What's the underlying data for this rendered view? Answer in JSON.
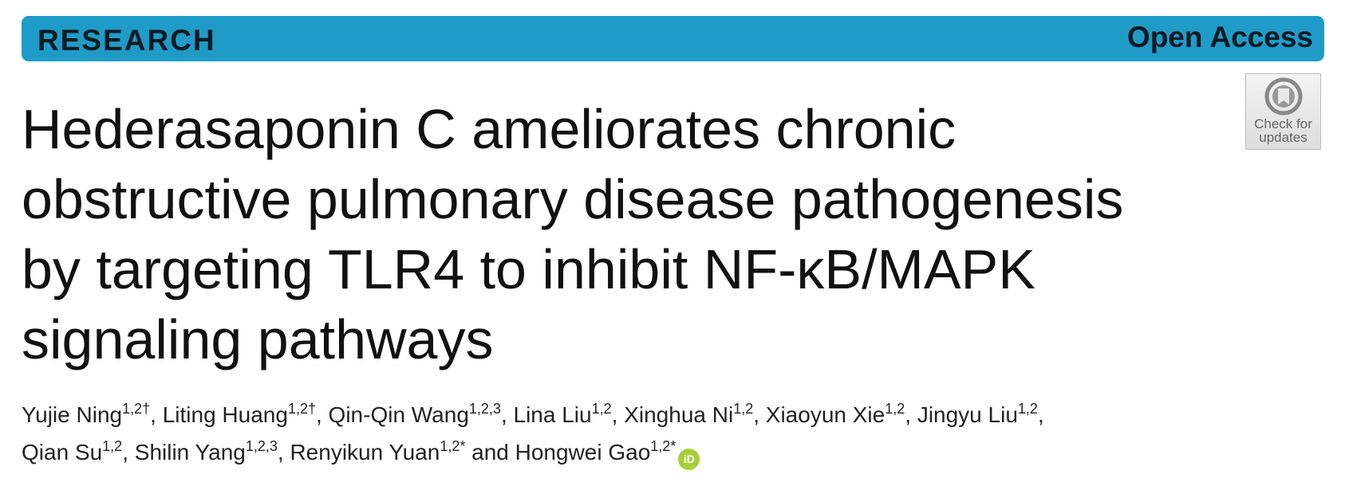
{
  "header": {
    "label": "RESEARCH",
    "access": "Open Access"
  },
  "badge": "Check for updates",
  "title_lines": [
    "Hederasaponin C ameliorates chronic",
    "obstructive pulmonary disease pathogenesis",
    "by targeting TLR4 to inhibit NF-κB/MAPK",
    "signaling pathways"
  ],
  "author_lines": [
    [
      {
        "name": "Yujie Ning",
        "sup": "1,2†",
        "after": ", "
      },
      {
        "name": "Liting Huang",
        "sup": "1,2†",
        "after": ", "
      },
      {
        "name": "Qin-Qin Wang",
        "sup": "1,2,3",
        "after": ", "
      },
      {
        "name": "Lina Liu",
        "sup": "1,2",
        "after": ", "
      },
      {
        "name": "Xinghua Ni",
        "sup": "1,2",
        "after": ", "
      },
      {
        "name": "Xiaoyun Xie",
        "sup": "1,2",
        "after": ", "
      },
      {
        "name": "Jingyu Liu",
        "sup": "1,2",
        "after": ","
      }
    ],
    [
      {
        "name": "Qian Su",
        "sup": "1,2",
        "after": ", "
      },
      {
        "name": "Shilin Yang",
        "sup": "1,2,3",
        "after": ", "
      },
      {
        "name": "Renyikun Yuan",
        "sup": "1,2*",
        "after": " and "
      },
      {
        "name": "Hongwei Gao",
        "sup": "1,2*"
      }
    ]
  ],
  "orcid": "iD"
}
